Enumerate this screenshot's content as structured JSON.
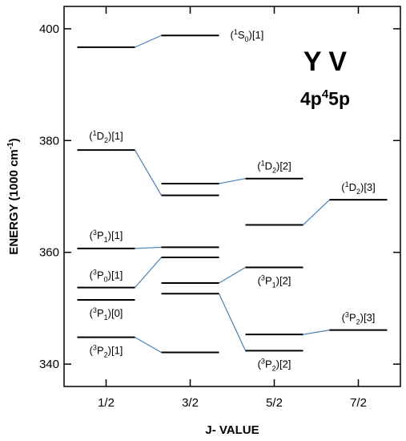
{
  "chart_data": {
    "type": "energy-level-diagram",
    "title": "Y V",
    "subtitle": {
      "prefix": "4p",
      "sup": "4",
      "suffix": "5p"
    },
    "xlabel": "J- VALUE",
    "ylabel": {
      "prefix": "ENERGY (1000 cm",
      "sup": "-1",
      "suffix": ")"
    },
    "ylim": [
      336,
      404
    ],
    "yticks": [
      340,
      360,
      380,
      400
    ],
    "xlim": [
      0.5,
      4.5
    ],
    "categories": [
      "1/2",
      "3/2",
      "5/2",
      "7/2"
    ],
    "levels": [
      {
        "id": "h1",
        "col": 1,
        "energy": 396.7
      },
      {
        "id": "h2",
        "col": 2,
        "energy": 398.8
      },
      {
        "id": "h3",
        "col": 1,
        "energy": 378.3
      },
      {
        "id": "h4",
        "col": 2,
        "energy": 372.3
      },
      {
        "id": "h5",
        "col": 2,
        "energy": 370.2
      },
      {
        "id": "h6",
        "col": 3,
        "energy": 373.2
      },
      {
        "id": "h7",
        "col": 3,
        "energy": 364.9
      },
      {
        "id": "h8",
        "col": 4,
        "energy": 369.4
      },
      {
        "id": "h9",
        "col": 1,
        "energy": 360.7
      },
      {
        "id": "h10",
        "col": 2,
        "energy": 360.9
      },
      {
        "id": "h11",
        "col": 2,
        "energy": 359.1
      },
      {
        "id": "h12",
        "col": 3,
        "energy": 357.3
      },
      {
        "id": "h13",
        "col": 1,
        "energy": 353.7
      },
      {
        "id": "h14",
        "col": 2,
        "energy": 354.5
      },
      {
        "id": "h15",
        "col": 2,
        "energy": 352.6
      },
      {
        "id": "h16",
        "col": 1,
        "energy": 351.5
      },
      {
        "id": "h17",
        "col": 1,
        "energy": 344.8
      },
      {
        "id": "h18",
        "col": 2,
        "energy": 342.1
      },
      {
        "id": "h19",
        "col": 3,
        "energy": 345.3
      },
      {
        "id": "h20",
        "col": 3,
        "energy": 342.4
      },
      {
        "id": "h21",
        "col": 4,
        "energy": 346.1
      }
    ],
    "connections": [
      [
        "h1",
        "h2"
      ],
      [
        "h3",
        "h5"
      ],
      [
        "h4",
        "h6"
      ],
      [
        "h7",
        "h8"
      ],
      [
        "h9",
        "h10"
      ],
      [
        "h13",
        "h11"
      ],
      [
        "h14",
        "h12"
      ],
      [
        "h15",
        "h20"
      ],
      [
        "h17",
        "h18"
      ],
      [
        "h19",
        "h21"
      ]
    ],
    "labels": [
      {
        "pre": "(",
        "sup": "1",
        "term": "S",
        "sub": "0",
        "post": ")[1]",
        "near": "h2",
        "side": "right",
        "dy": 4
      },
      {
        "pre": "(",
        "sup": "1",
        "term": "D",
        "sub": "2",
        "post": ")[1]",
        "near": "h3",
        "side": "above",
        "dy": -13
      },
      {
        "pre": "(",
        "sup": "1",
        "term": "D",
        "sub": "2",
        "post": ")[2]",
        "near": "h6",
        "side": "above",
        "dy": -11
      },
      {
        "pre": "(",
        "sup": "1",
        "term": "D",
        "sub": "2",
        "post": ")[3]",
        "near": "h8",
        "side": "above",
        "dy": -11
      },
      {
        "pre": "(",
        "sup": "3",
        "term": "P",
        "sub": "1",
        "post": ")[1]",
        "near": "h9",
        "side": "above",
        "dy": -12
      },
      {
        "pre": "(",
        "sup": "3",
        "term": "P",
        "sub": "0",
        "post": ")[1]",
        "near": "h13",
        "side": "above",
        "dy": -11
      },
      {
        "pre": "(",
        "sup": "3",
        "term": "P",
        "sub": "1",
        "post": ")[0]",
        "near": "h16",
        "side": "below",
        "dy": 21
      },
      {
        "pre": "(",
        "sup": "3",
        "term": "P",
        "sub": "1",
        "post": ")[2]",
        "near": "h12",
        "side": "below",
        "dy": 21
      },
      {
        "pre": "(",
        "sup": "3",
        "term": "P",
        "sub": "2",
        "post": ")[1]",
        "near": "h17",
        "side": "below",
        "dy": 21
      },
      {
        "pre": "(",
        "sup": "3",
        "term": "P",
        "sub": "2",
        "post": ")[2]",
        "near": "h20",
        "side": "below",
        "dy": 21
      },
      {
        "pre": "(",
        "sup": "3",
        "term": "P",
        "sub": "2",
        "post": ")[3]",
        "near": "h21",
        "side": "above",
        "dy": -11
      }
    ]
  }
}
